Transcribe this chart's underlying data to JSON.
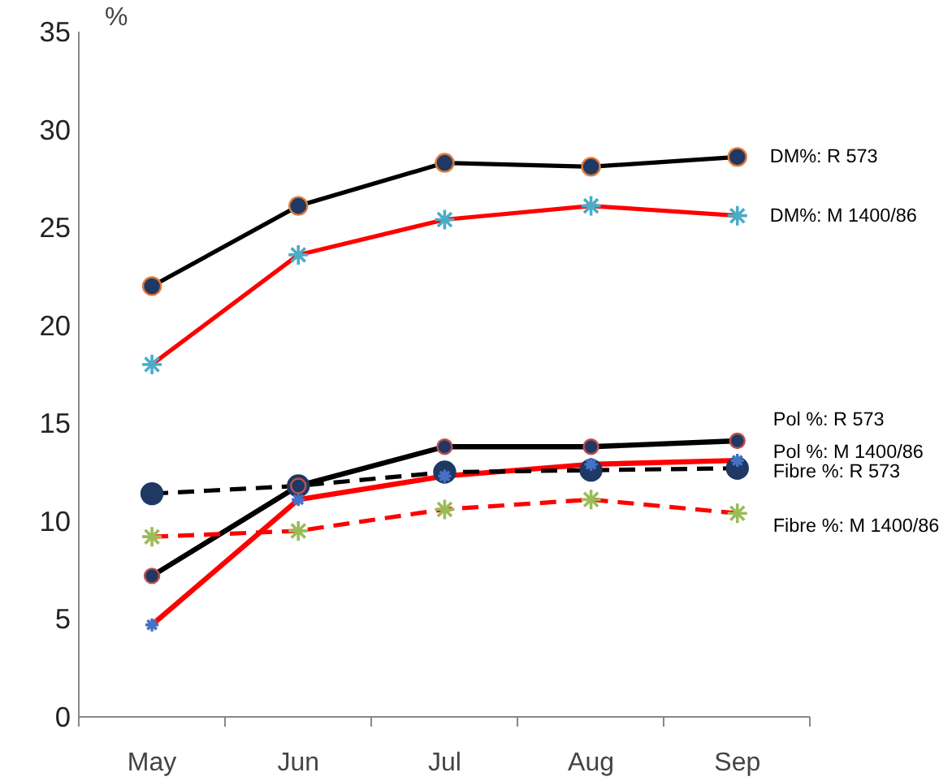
{
  "chart_data": {
    "type": "line",
    "ylabel": "%",
    "categories": [
      "May",
      "Jun",
      "Jul",
      "Aug",
      "Sep"
    ],
    "ylim": [
      0,
      35
    ],
    "yticks": [
      0,
      5,
      10,
      15,
      20,
      25,
      30,
      35
    ],
    "grid": false,
    "series": [
      {
        "name": "DM%: R 573",
        "color": "#000000",
        "marker": "circle",
        "line_style": "solid",
        "colors": [
          "#1f3864",
          "#1f3864",
          "#1f3864",
          "#1f3864",
          "#1f3864"
        ],
        "values": [
          22.0,
          26.1,
          28.3,
          28.1,
          28.6
        ]
      },
      {
        "name": "DM%: M 1400/86",
        "color": "#ff0000",
        "marker": "cross",
        "line_style": "solid",
        "colors": [
          "#4bacc6",
          "#4bacc6",
          "#4bacc6",
          "#4bacc6",
          "#4bacc6"
        ],
        "values": [
          18.0,
          23.6,
          25.4,
          26.1,
          25.6
        ]
      },
      {
        "name": "Pol %: R 573",
        "color": "#000000",
        "marker": "circle",
        "line_style": "solid",
        "colors": [
          "#1f3864",
          "#1f3864",
          "#1f3864",
          "#1f3864",
          "#1f3864"
        ],
        "values": [
          7.2,
          11.8,
          13.8,
          13.8,
          14.1
        ]
      },
      {
        "name": "Pol %: M 1400/86",
        "color": "#ff0000",
        "marker": "cross",
        "line_style": "solid",
        "colors": [
          "#4472c4",
          "#4472c4",
          "#4472c4",
          "#4472c4",
          "#4472c4"
        ],
        "values": [
          4.7,
          11.1,
          12.3,
          12.9,
          13.1
        ]
      },
      {
        "name": "Fibre %: R 573",
        "color": "#000000",
        "marker": "circle",
        "line_style": "dashed",
        "colors": [
          "#1f3864",
          "#1f3864",
          "#1f3864",
          "#1f3864",
          "#1f3864"
        ],
        "values": [
          11.4,
          11.8,
          12.5,
          12.6,
          12.7
        ]
      },
      {
        "name": "Fibre %: M 1400/86",
        "color": "#ff0000",
        "marker": "cross",
        "line_style": "dashed",
        "colors": [
          "#9bbb59",
          "#9bbb59",
          "#9bbb59",
          "#9bbb59",
          "#9bbb59"
        ],
        "values": [
          9.2,
          9.5,
          10.6,
          11.1,
          10.4
        ]
      }
    ]
  }
}
